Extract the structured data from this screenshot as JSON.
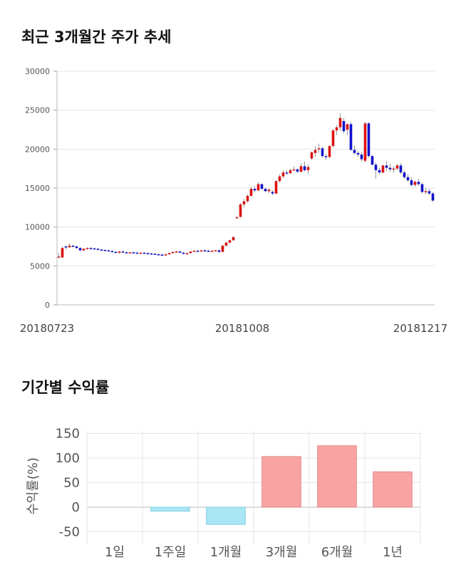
{
  "charts": {
    "price": {
      "title": "최근 3개월간 주가 추세"
    },
    "returns": {
      "title": "기간별 수익률"
    }
  },
  "chart_data": [
    {
      "type": "candlestick",
      "title": "최근 3개월간 주가 추세",
      "ylim": [
        0,
        30000
      ],
      "yticks": [
        0,
        5000,
        10000,
        15000,
        20000,
        25000,
        30000
      ],
      "xtick_labels": [
        "20180723",
        "20181008",
        "20181217"
      ],
      "grid": true,
      "colors": {
        "up": "#dd1111",
        "down": "#1111cc",
        "wick": "#999999"
      },
      "candles": [
        [
          6100,
          6700,
          6000,
          6200
        ],
        [
          6100,
          7500,
          6000,
          7300
        ],
        [
          7500,
          7600,
          7100,
          7400
        ],
        [
          7400,
          7900,
          7300,
          7600
        ],
        [
          7600,
          7700,
          7400,
          7500
        ],
        [
          7500,
          7600,
          7200,
          7300
        ],
        [
          7300,
          7400,
          6900,
          7000
        ],
        [
          7000,
          7300,
          6900,
          7200
        ],
        [
          7200,
          7400,
          7100,
          7300
        ],
        [
          7300,
          7400,
          7100,
          7250
        ],
        [
          7250,
          7350,
          7100,
          7200
        ],
        [
          7200,
          7300,
          7050,
          7100
        ],
        [
          7100,
          7200,
          6950,
          7050
        ],
        [
          7050,
          7150,
          6900,
          7000
        ],
        [
          7000,
          7100,
          6850,
          6900
        ],
        [
          6900,
          7000,
          6750,
          6800
        ],
        [
          6800,
          6900,
          6600,
          6700
        ],
        [
          6700,
          6900,
          6600,
          6850
        ],
        [
          6850,
          6950,
          6700,
          6750
        ],
        [
          6750,
          6850,
          6650,
          6700
        ],
        [
          6700,
          6800,
          6600,
          6750
        ],
        [
          6750,
          6850,
          6650,
          6700
        ],
        [
          6700,
          6800,
          6600,
          6650
        ],
        [
          6650,
          6750,
          6550,
          6700
        ],
        [
          6700,
          6800,
          6600,
          6650
        ],
        [
          6650,
          6750,
          6550,
          6600
        ],
        [
          6600,
          6700,
          6500,
          6550
        ],
        [
          6550,
          6650,
          6450,
          6500
        ],
        [
          6500,
          6600,
          6400,
          6450
        ],
        [
          6450,
          6550,
          6350,
          6400
        ],
        [
          6400,
          6550,
          6300,
          6500
        ],
        [
          6500,
          6700,
          6450,
          6650
        ],
        [
          6650,
          6850,
          6600,
          6800
        ],
        [
          6800,
          6950,
          6750,
          6850
        ],
        [
          6850,
          6950,
          6650,
          6700
        ],
        [
          6700,
          6800,
          6500,
          6550
        ],
        [
          6550,
          6700,
          6450,
          6650
        ],
        [
          6650,
          6900,
          6600,
          6850
        ],
        [
          6850,
          7000,
          6800,
          6950
        ],
        [
          6950,
          7050,
          6850,
          6900
        ],
        [
          6900,
          7050,
          6850,
          7000
        ],
        [
          7000,
          7100,
          6900,
          6950
        ],
        [
          6950,
          7050,
          6850,
          6900
        ],
        [
          6900,
          7000,
          6800,
          6950
        ],
        [
          6950,
          7050,
          6900,
          7000
        ],
        [
          7000,
          7100,
          6700,
          6800
        ],
        [
          6800,
          7700,
          6750,
          7600
        ],
        [
          7600,
          8100,
          7500,
          8000
        ],
        [
          8000,
          8400,
          7900,
          8300
        ],
        [
          8300,
          8800,
          8200,
          8700
        ],
        [
          11200,
          11400,
          11100,
          11250
        ],
        [
          11300,
          13100,
          11200,
          12900
        ],
        [
          12900,
          13600,
          12500,
          13300
        ],
        [
          13300,
          14200,
          13100,
          14000
        ],
        [
          14000,
          15200,
          13900,
          14900
        ],
        [
          14900,
          15300,
          14400,
          14700
        ],
        [
          14700,
          15800,
          14600,
          15500
        ],
        [
          15500,
          15600,
          14800,
          14900
        ],
        [
          14900,
          15100,
          14500,
          14600
        ],
        [
          14600,
          15000,
          14300,
          14800
        ],
        [
          14500,
          14700,
          14100,
          14300
        ],
        [
          14300,
          16000,
          14200,
          15900
        ],
        [
          15900,
          16800,
          15700,
          16500
        ],
        [
          16500,
          17300,
          16300,
          17000
        ],
        [
          17000,
          17300,
          16700,
          16900
        ],
        [
          16900,
          17500,
          16800,
          17300
        ],
        [
          17300,
          17800,
          17200,
          17400
        ],
        [
          17400,
          17500,
          16900,
          17100
        ],
        [
          17100,
          18200,
          17000,
          17800
        ],
        [
          17800,
          18400,
          17100,
          17300
        ],
        [
          17300,
          18000,
          16800,
          17700
        ],
        [
          18800,
          19700,
          18600,
          19600
        ],
        [
          19500,
          20400,
          19000,
          19900
        ],
        [
          20000,
          20700,
          19500,
          20100
        ],
        [
          20100,
          20300,
          18900,
          19100
        ],
        [
          19100,
          19400,
          18600,
          19000
        ],
        [
          19000,
          20500,
          18800,
          20400
        ],
        [
          20400,
          22600,
          20200,
          22400
        ],
        [
          22400,
          23100,
          21800,
          22800
        ],
        [
          22800,
          24600,
          22300,
          24000
        ],
        [
          23600,
          24000,
          22000,
          22300
        ],
        [
          22500,
          23300,
          21800,
          23200
        ],
        [
          23200,
          23500,
          19800,
          19900
        ],
        [
          19900,
          20500,
          19300,
          19500
        ],
        [
          19500,
          19800,
          19000,
          19300
        ],
        [
          19300,
          19600,
          18400,
          18700
        ],
        [
          18500,
          23500,
          18300,
          23300
        ],
        [
          23300,
          23500,
          18900,
          19100
        ],
        [
          19100,
          19300,
          17900,
          18000
        ],
        [
          18000,
          18300,
          16200,
          17300
        ],
        [
          17300,
          17600,
          16700,
          17000
        ],
        [
          17000,
          18000,
          16900,
          17900
        ],
        [
          17900,
          18500,
          17200,
          17600
        ],
        [
          17600,
          18100,
          17100,
          17400
        ],
        [
          17400,
          17800,
          17000,
          17500
        ],
        [
          17500,
          18100,
          17300,
          17900
        ],
        [
          17900,
          18200,
          16800,
          17000
        ],
        [
          17000,
          17300,
          16200,
          16400
        ],
        [
          16400,
          16800,
          15800,
          16000
        ],
        [
          16000,
          16400,
          15200,
          15400
        ],
        [
          15400,
          16000,
          15200,
          15800
        ],
        [
          15800,
          16200,
          15300,
          15500
        ],
        [
          15500,
          15700,
          14300,
          14500
        ],
        [
          14500,
          15100,
          14200,
          14600
        ],
        [
          14600,
          14900,
          14100,
          14300
        ],
        [
          14300,
          14500,
          13200,
          13400
        ]
      ]
    },
    {
      "type": "bar",
      "title": "기간별 수익률",
      "ylabel": "수익률(%)",
      "ylim": [
        -55,
        155
      ],
      "yticks": [
        -50,
        0,
        50,
        100,
        150
      ],
      "categories": [
        "1일",
        "1주일",
        "1개월",
        "3개월",
        "6개월",
        "1년"
      ],
      "values": [
        0,
        -8,
        -35,
        103,
        125,
        72
      ],
      "grid": true,
      "colors": {
        "positive": "#f9a3a3",
        "positive_edge": "#e08a8a",
        "negative": "#a8e6f4",
        "negative_edge": "#86cde0"
      }
    }
  ]
}
